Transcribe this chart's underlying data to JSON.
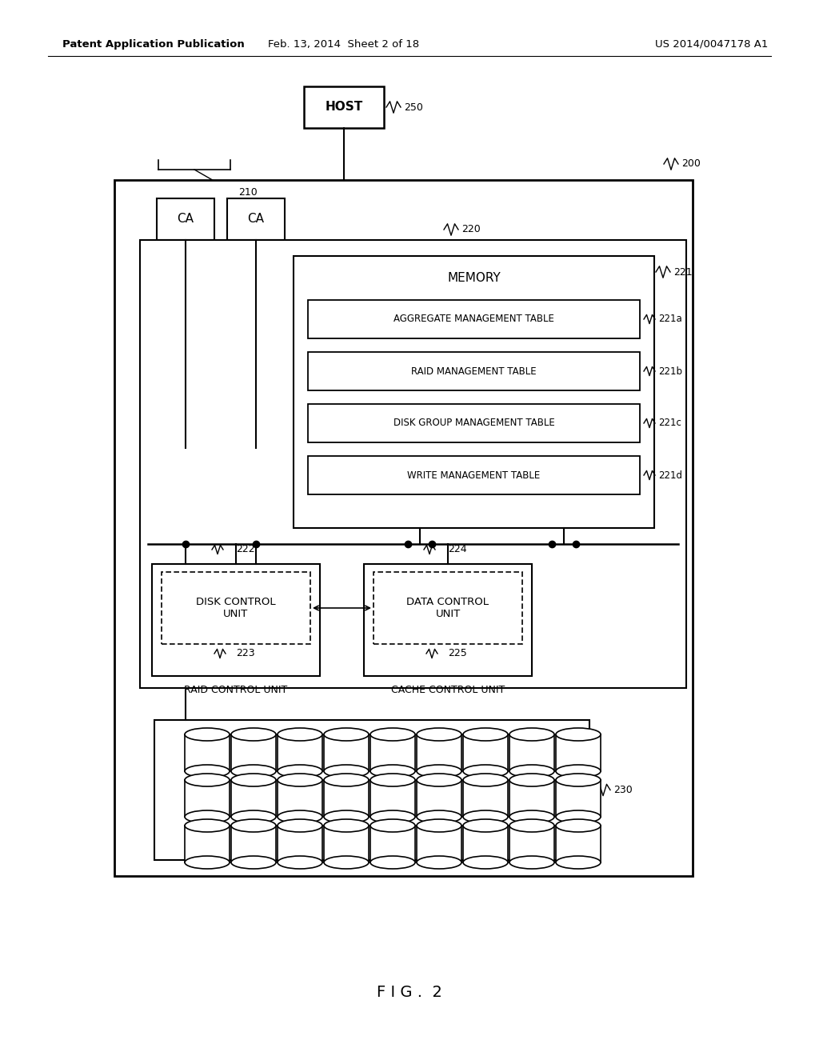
{
  "bg_color": "#ffffff",
  "header_text": "Patent Application Publication",
  "header_date": "Feb. 13, 2014  Sheet 2 of 18",
  "header_patent": "US 2014/0047178 A1",
  "fig_label": "F I G .  2",
  "host_label": "HOST",
  "label_250": "250",
  "label_210": "210",
  "label_200": "200",
  "label_220": "220",
  "label_221": "221",
  "label_221a": "221a",
  "label_221b": "221b",
  "label_221c": "221c",
  "label_221d": "221d",
  "label_222": "222",
  "label_223": "223",
  "label_224": "224",
  "label_225": "225",
  "label_230": "230",
  "ca_label": "CA",
  "memory_label": "MEMORY",
  "table_labels": [
    "AGGREGATE MANAGEMENT TABLE",
    "RAID MANAGEMENT TABLE",
    "DISK GROUP MANAGEMENT TABLE",
    "WRITE MANAGEMENT TABLE"
  ],
  "disk_control_label": "DISK CONTROL\nUNIT",
  "data_control_label": "DATA CONTROL\nUNIT",
  "raid_label": "RAID CONTROL UNIT",
  "cache_label": "CACHE CONTROL UNIT",
  "line_color": "#000000",
  "text_color": "#000000"
}
